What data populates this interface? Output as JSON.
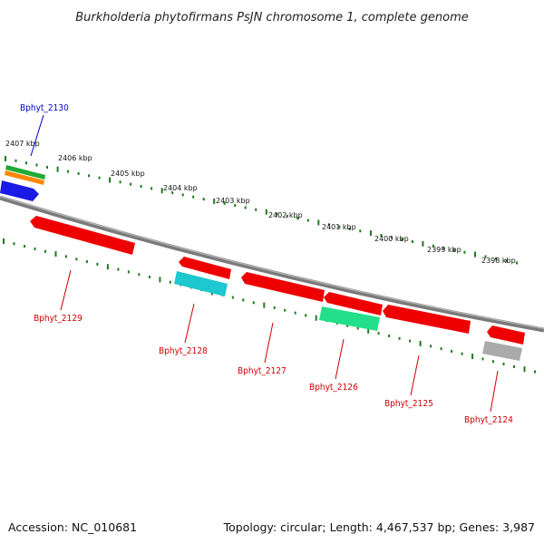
{
  "title": "Burkholderia phytofirmans PsJN chromosome 1, complete genome",
  "footer": {
    "accession": "Accession: NC_010681",
    "summary": "Topology: circular; Length: 4,467,537 bp; Genes: 3,987"
  },
  "kbp_ticks": [
    "2407 kbp",
    "2406 kbp",
    "2405 kbp",
    "2404 kbp",
    "2403 kbp",
    "2402 kbp",
    "2401 kbp",
    "2400 kbp",
    "2399 kbp",
    "2398 kbp"
  ],
  "genes": [
    {
      "id": "Bphyt_2130",
      "strand": "forward",
      "color": "#1a1ae6",
      "label_color": "#0000cc"
    },
    {
      "id": "Bphyt_2129",
      "strand": "reverse",
      "color": "#ee0000",
      "label_color": "#cc0000"
    },
    {
      "id": "Bphyt_2128",
      "strand": "reverse",
      "color": "#ee0000",
      "label_color": "#cc0000"
    },
    {
      "id": "Bphyt_2127",
      "strand": "reverse",
      "color": "#ee0000",
      "label_color": "#cc0000"
    },
    {
      "id": "Bphyt_2126",
      "strand": "reverse",
      "color": "#ee0000",
      "label_color": "#cc0000"
    },
    {
      "id": "Bphyt_2125",
      "strand": "reverse",
      "color": "#ee0000",
      "label_color": "#cc0000"
    },
    {
      "id": "Bphyt_2124",
      "strand": "reverse",
      "color": "#ee0000",
      "label_color": "#cc0000"
    }
  ],
  "colors": {
    "backbone": "#7a7a7a",
    "tick": "#1e7a1e",
    "forward_cds": "#1a1ae6",
    "reverse_cds": "#ee0000",
    "rna_green": "#22aa33",
    "rna_orange": "#ff8800",
    "rna_cyan": "#1ec8d0",
    "rna_mint": "#22e08a",
    "rna_grey": "#aaaaaa"
  }
}
